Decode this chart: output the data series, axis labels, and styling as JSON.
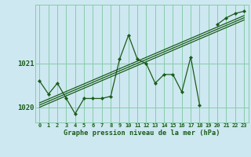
{
  "xlabel": "Graphe pression niveau de la mer (hPa)",
  "background_color": "#cde8f0",
  "grid_color": "#88ccaa",
  "line_color": "#1a5c1a",
  "x_values": [
    0,
    1,
    2,
    3,
    4,
    5,
    6,
    7,
    8,
    9,
    10,
    11,
    12,
    13,
    14,
    15,
    16,
    17,
    18,
    19,
    20,
    21,
    22,
    23
  ],
  "y_main": [
    1020.6,
    1020.3,
    1020.55,
    1020.2,
    1019.85,
    1020.2,
    1020.2,
    1020.2,
    1020.25,
    1021.1,
    1021.65,
    1021.1,
    1021.0,
    1020.55,
    1020.75,
    1020.75,
    1020.35,
    1021.15,
    1020.05,
    null,
    1021.9,
    1022.05,
    1022.15,
    1022.2
  ],
  "ylim": [
    1019.65,
    1022.35
  ],
  "yticks": [
    1020,
    1021
  ],
  "trend_lines": [
    [
      1020.0,
      1022.0
    ],
    [
      1020.05,
      1022.05
    ],
    [
      1020.1,
      1022.1
    ]
  ]
}
